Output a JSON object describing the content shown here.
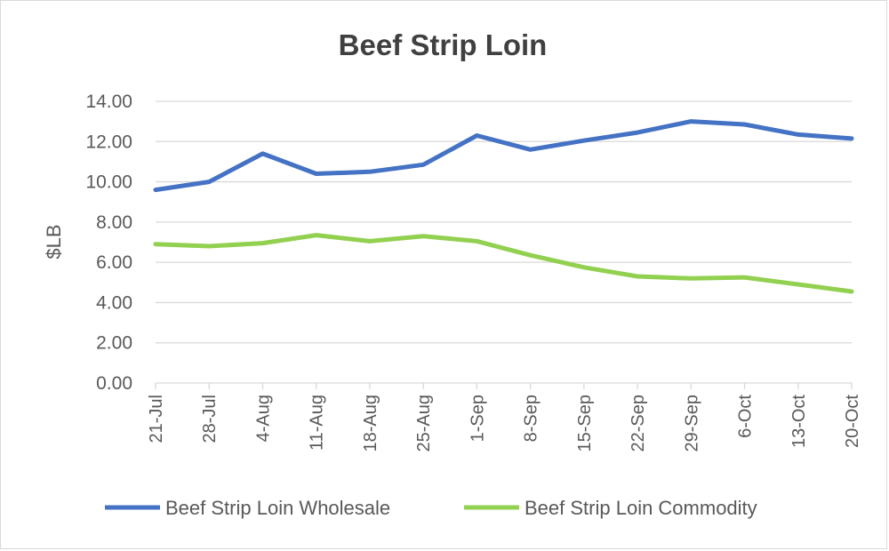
{
  "chart_data": {
    "type": "line",
    "title": "Beef Strip Loin",
    "ylabel": "$LB",
    "xlabel": "",
    "ylim": [
      0,
      14
    ],
    "ytick_step": 2,
    "ytick_labels": [
      "0.00",
      "2.00",
      "4.00",
      "6.00",
      "8.00",
      "10.00",
      "12.00",
      "14.00"
    ],
    "grid": true,
    "legend_position": "bottom",
    "categories": [
      "21-Jul",
      "28-Jul",
      "4-Aug",
      "11-Aug",
      "18-Aug",
      "25-Aug",
      "1-Sep",
      "8-Sep",
      "15-Sep",
      "22-Sep",
      "29-Sep",
      "6-Oct",
      "13-Oct",
      "20-Oct"
    ],
    "series": [
      {
        "name": "Beef Strip Loin Wholesale",
        "color": "#4472C4",
        "values": [
          9.6,
          10.0,
          11.4,
          10.4,
          10.5,
          10.85,
          12.3,
          11.6,
          12.05,
          12.45,
          13.0,
          12.85,
          12.35,
          12.15
        ]
      },
      {
        "name": "Beef Strip Loin Commodity",
        "color": "#92D050",
        "values": [
          6.9,
          6.8,
          6.95,
          7.35,
          7.05,
          7.3,
          7.05,
          6.35,
          5.75,
          5.3,
          5.2,
          5.25,
          4.9,
          4.55
        ]
      }
    ]
  }
}
